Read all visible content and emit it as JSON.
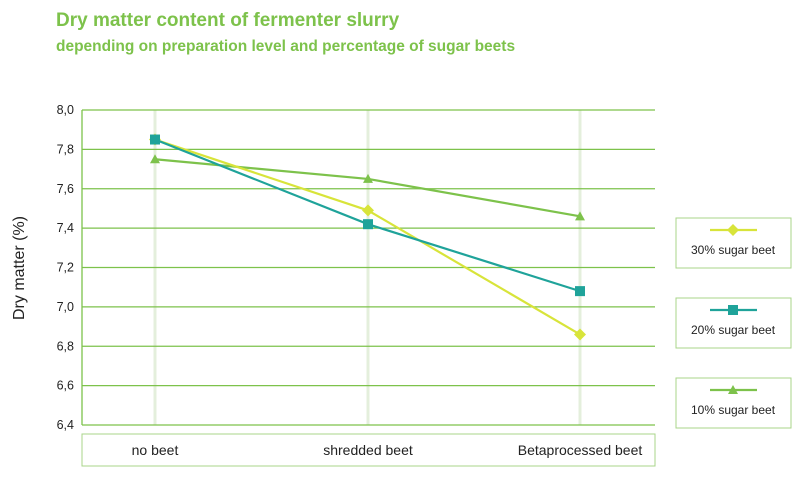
{
  "chart_data": {
    "type": "line",
    "title": "Dry matter content of fermenter slurry",
    "subtitle": "depending on preparation level and percentage of sugar beets",
    "ylabel": "Dry matter (%)",
    "xlabel": "",
    "ylim": [
      6.4,
      8.0
    ],
    "yticks": [
      "8,0",
      "7,8",
      "7,6",
      "7,4",
      "7,2",
      "7,0",
      "6,8",
      "6,6",
      "6,4"
    ],
    "ytick_values": [
      8.0,
      7.8,
      7.6,
      7.4,
      7.2,
      7.0,
      6.8,
      6.6,
      6.4
    ],
    "categories": [
      "no beet",
      "shredded beet",
      "Betaprocessed beet"
    ],
    "grid": true,
    "legend_position": "right",
    "series": [
      {
        "name": "30% sugar beet",
        "color": "#d8e43a",
        "marker": "diamond",
        "values": [
          7.85,
          7.49,
          6.86
        ]
      },
      {
        "name": "20% sugar beet",
        "color": "#1fa39a",
        "marker": "square",
        "values": [
          7.85,
          7.42,
          7.08
        ]
      },
      {
        "name": "10% sugar beet",
        "color": "#7dc24b",
        "marker": "triangle",
        "values": [
          7.75,
          7.65,
          7.46
        ]
      }
    ]
  }
}
